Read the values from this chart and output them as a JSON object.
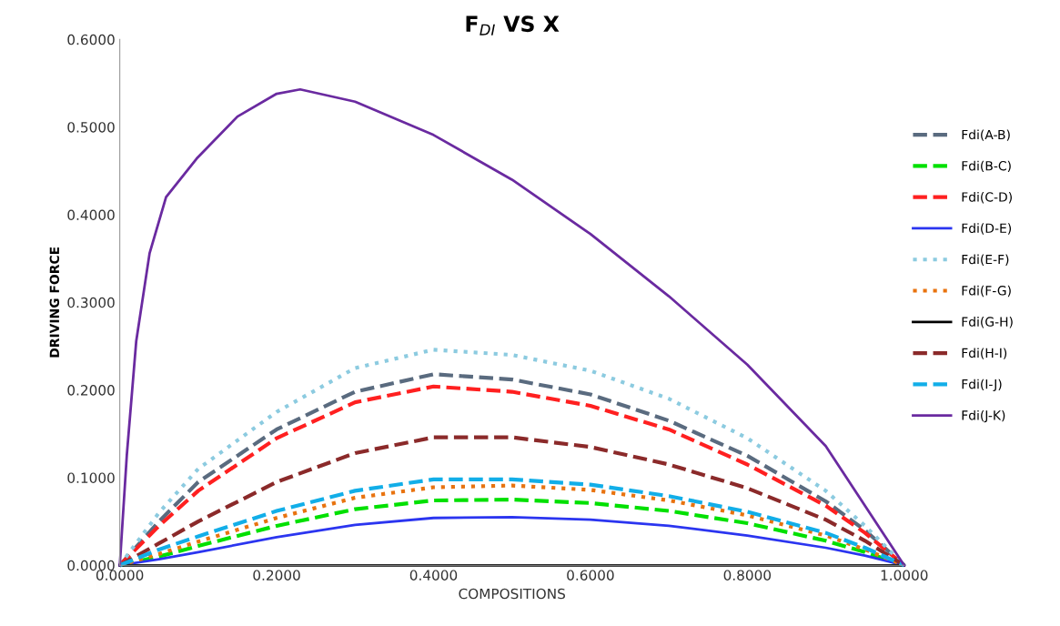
{
  "chart_data": {
    "type": "line",
    "title": "F$_{DI}$ VS X",
    "xlabel": "COMPOSITIONS",
    "ylabel": "DRIVING FORCE",
    "x": [
      0,
      0.05,
      0.1,
      0.2,
      0.3,
      0.4,
      0.5,
      0.6,
      0.7,
      0.8,
      0.9,
      0.95,
      1.0
    ],
    "xlim": [
      0,
      1
    ],
    "xticks": [
      {
        "value": 0,
        "label": "0.0000"
      },
      {
        "value": 0.2,
        "label": "0.2000"
      },
      {
        "value": 0.4,
        "label": "0.4000"
      },
      {
        "value": 0.6,
        "label": "0.6000"
      },
      {
        "value": 0.8,
        "label": "0.8000"
      },
      {
        "value": 1,
        "label": "1.0000"
      }
    ],
    "ylim": [
      0,
      0.6
    ],
    "yticks": [
      {
        "value": 0,
        "label": "0.0000"
      },
      {
        "value": 0.1,
        "label": "0.1000"
      },
      {
        "value": 0.2,
        "label": "0.2000"
      },
      {
        "value": 0.3,
        "label": "0.3000"
      },
      {
        "value": 0.4,
        "label": "0.4000"
      },
      {
        "value": 0.5,
        "label": "0.5000"
      },
      {
        "value": 0.6,
        "label": "0.6000"
      }
    ],
    "grid": false,
    "legend": "right",
    "marker": "none",
    "series": [
      {
        "name": "Fdi(A-B)",
        "color": "#5a6b7f",
        "line_style": "dashed",
        "values": [
          0,
          0.05,
          0.095,
          0.155,
          0.198,
          0.218,
          0.212,
          0.195,
          0.165,
          0.125,
          0.073,
          0.04,
          0
        ]
      },
      {
        "name": "Fdi(B-C)",
        "color": "#00e000",
        "line_style": "dashed",
        "values": [
          0,
          0.01,
          0.022,
          0.045,
          0.064,
          0.074,
          0.075,
          0.071,
          0.062,
          0.048,
          0.028,
          0.015,
          0
        ]
      },
      {
        "name": "Fdi(C-D)",
        "color": "#ff2020",
        "line_style": "dashed",
        "values": [
          0,
          0.045,
          0.085,
          0.145,
          0.186,
          0.204,
          0.198,
          0.182,
          0.155,
          0.115,
          0.068,
          0.037,
          0
        ]
      },
      {
        "name": "Fdi(D-E)",
        "color": "#2b35f0",
        "line_style": "solid",
        "values": [
          0,
          0.007,
          0.015,
          0.032,
          0.046,
          0.054,
          0.055,
          0.052,
          0.045,
          0.034,
          0.02,
          0.011,
          0
        ]
      },
      {
        "name": "Fdi(E-F)",
        "color": "#8ccbe0",
        "line_style": "dotted",
        "values": [
          0,
          0.06,
          0.11,
          0.175,
          0.225,
          0.246,
          0.24,
          0.222,
          0.19,
          0.145,
          0.085,
          0.045,
          0
        ]
      },
      {
        "name": "Fdi(F-G)",
        "color": "#e8730f",
        "line_style": "dotted",
        "values": [
          0,
          0.013,
          0.027,
          0.054,
          0.077,
          0.089,
          0.091,
          0.086,
          0.074,
          0.057,
          0.034,
          0.018,
          0
        ]
      },
      {
        "name": "Fdi(G-H)",
        "color": "#000000",
        "line_style": "solid",
        "values": [
          0,
          0,
          0,
          0,
          0,
          0,
          0,
          0,
          0,
          0,
          0,
          0,
          0
        ]
      },
      {
        "name": "Fdi(H-I)",
        "color": "#8b2a2a",
        "line_style": "dashed",
        "values": [
          0,
          0.025,
          0.05,
          0.095,
          0.128,
          0.146,
          0.146,
          0.135,
          0.115,
          0.088,
          0.052,
          0.028,
          0
        ]
      },
      {
        "name": "Fdi(I-J)",
        "color": "#12aee8",
        "line_style": "dashed",
        "values": [
          0,
          0.018,
          0.033,
          0.062,
          0.085,
          0.098,
          0.098,
          0.092,
          0.079,
          0.061,
          0.037,
          0.02,
          0
        ]
      },
      {
        "name": "Fdi(J-K)",
        "color": "#6a2aa0",
        "line_style": "solid",
        "x": [
          0,
          0.009,
          0.021,
          0.038,
          0.059,
          0.098,
          0.15,
          0.2,
          0.23,
          0.3,
          0.4,
          0.5,
          0.6,
          0.7,
          0.8,
          0.9,
          1.0
        ],
        "values": [
          0,
          0.126,
          0.256,
          0.356,
          0.42,
          0.464,
          0.512,
          0.538,
          0.543,
          0.529,
          0.491,
          0.44,
          0.378,
          0.307,
          0.229,
          0.136,
          0
        ]
      }
    ]
  }
}
